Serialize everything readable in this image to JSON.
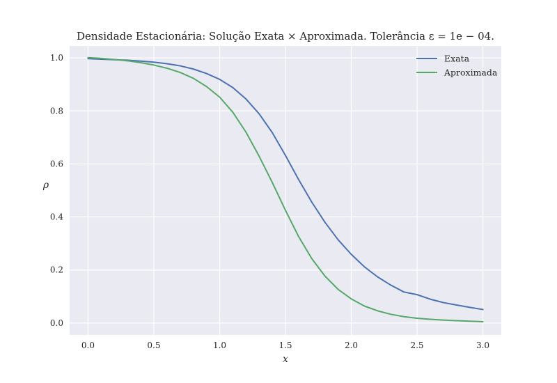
{
  "chart_data": {
    "type": "line",
    "title": "Densidade Estacionária: Solução Exata × Aproximada. Tolerância ε = 1e − 04.",
    "xlabel": "x",
    "ylabel": "ρ",
    "xlim": [
      -0.14,
      3.14
    ],
    "ylim": [
      -0.045,
      1.045
    ],
    "grid": true,
    "legend_position": "top-right",
    "x_ticks": [
      "0.0",
      "0.5",
      "1.0",
      "1.5",
      "2.0",
      "2.5",
      "3.0"
    ],
    "y_ticks": [
      "0.0",
      "0.2",
      "0.4",
      "0.6",
      "0.8",
      "1.0"
    ],
    "x": [
      0.0,
      0.1,
      0.2,
      0.3,
      0.4,
      0.5,
      0.6,
      0.7,
      0.8,
      0.9,
      1.0,
      1.1,
      1.2,
      1.3,
      1.4,
      1.5,
      1.6,
      1.7,
      1.8,
      1.9,
      2.0,
      2.1,
      2.2,
      2.3,
      2.4,
      2.5,
      2.6,
      2.7,
      2.8,
      2.9,
      3.0
    ],
    "series": [
      {
        "name": "Exata",
        "color": "#4c72b0",
        "values": [
          0.997,
          0.995,
          0.993,
          0.991,
          0.988,
          0.984,
          0.978,
          0.97,
          0.958,
          0.941,
          0.919,
          0.888,
          0.845,
          0.789,
          0.718,
          0.632,
          0.541,
          0.456,
          0.38,
          0.314,
          0.259,
          0.212,
          0.174,
          0.143,
          0.117,
          0.107,
          0.09,
          0.077,
          0.068,
          0.059,
          0.051
        ]
      },
      {
        "name": "Aproximada",
        "color": "#55a868",
        "values": [
          1.001,
          0.998,
          0.994,
          0.989,
          0.982,
          0.973,
          0.961,
          0.945,
          0.923,
          0.892,
          0.852,
          0.795,
          0.72,
          0.629,
          0.53,
          0.425,
          0.326,
          0.243,
          0.177,
          0.127,
          0.091,
          0.064,
          0.046,
          0.033,
          0.024,
          0.018,
          0.014,
          0.011,
          0.009,
          0.007,
          0.005
        ]
      }
    ]
  }
}
